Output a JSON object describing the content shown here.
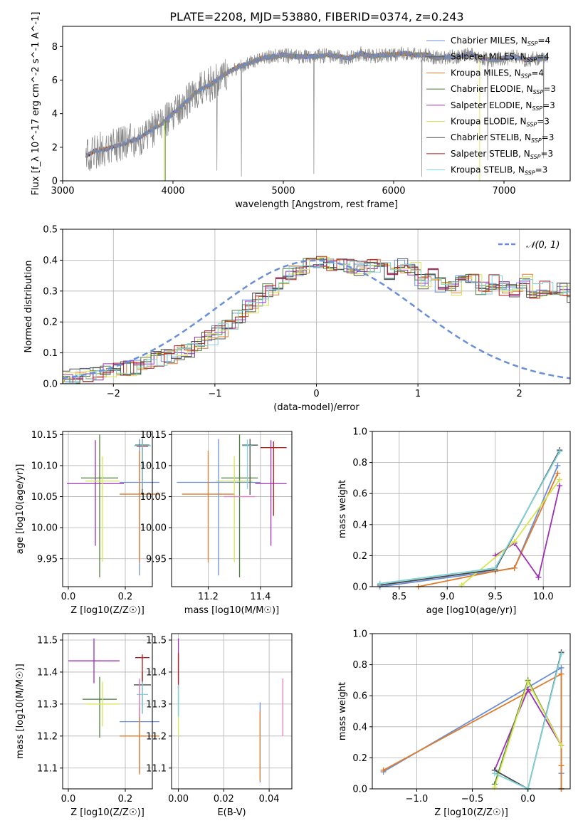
{
  "figure_title": "PLATE=2208, MJD=53880, FIBERID=0374, z=0.243",
  "colors": {
    "Chabrier MILES": "#6a8fd8",
    "Salpeter MILES": "#5a5a5a",
    "Kroupa MILES": "#e07b2a",
    "Chabrier ELODIE": "#4e7f3a",
    "Salpeter ELODIE": "#9b30b5",
    "Kroupa ELODIE": "#d7e650",
    "Chabrier STELIB": "#4a4a4a",
    "Salpeter STELIB": "#b01d1d",
    "Kroupa STELIB": "#7fd3d8",
    "normal": "#6a8fd8",
    "pink": "#e77fbf"
  },
  "chart_data": [
    {
      "id": "spectrum",
      "type": "line",
      "title": "PLATE=2208, MJD=53880, FIBERID=0374, z=0.243",
      "xlabel": "wavelength [Angstrom, rest frame]",
      "ylabel": "Flux [f_λ 10^-17 erg cm^-2 s^-1 A^-1]",
      "xlim": [
        3000,
        7600
      ],
      "ylim": [
        0,
        9.2
      ],
      "xticks": [
        3000,
        4000,
        5000,
        6000,
        7000
      ],
      "yticks": [
        0,
        2,
        4,
        6,
        8
      ],
      "grid": false,
      "legend_position": "right",
      "legend": [
        {
          "name": "Chabrier MILES, N_SSP=4",
          "label": "Chabrier MILES, N",
          "sub": "SSP",
          "suffix": "=4"
        },
        {
          "name": "Salpeter MILES, N_SSP=4",
          "label": "Salpeter MILES, N",
          "sub": "SSP",
          "suffix": "=4"
        },
        {
          "name": "Kroupa MILES, N_SSP=4",
          "label": "Kroupa MILES, N",
          "sub": "SSP",
          "suffix": "=4"
        },
        {
          "name": "Chabrier ELODIE, N_SSP=3",
          "label": "Chabrier ELODIE, N",
          "sub": "SSP",
          "suffix": "=3"
        },
        {
          "name": "Salpeter ELODIE, N_SSP=3",
          "label": "Salpeter ELODIE, N",
          "sub": "SSP",
          "suffix": "=3"
        },
        {
          "name": "Kroupa ELODIE, N_SSP=3",
          "label": "Kroupa ELODIE, N",
          "sub": "SSP",
          "suffix": "=3"
        },
        {
          "name": "Chabrier STELIB, N_SSP=3",
          "label": "Chabrier STELIB, N",
          "sub": "SSP",
          "suffix": "=3"
        },
        {
          "name": "Salpeter STELIB, N_SSP=3",
          "label": "Salpeter STELIB, N",
          "sub": "SSP",
          "suffix": "=3"
        },
        {
          "name": "Kroupa STELIB, N_SSP=3",
          "label": "Kroupa STELIB, N",
          "sub": "SSP",
          "suffix": "=3"
        }
      ],
      "continuum": {
        "x": [
          3210,
          3300,
          3400,
          3500,
          3600,
          3700,
          3800,
          3900,
          4000,
          4100,
          4200,
          4300,
          4400,
          4500,
          4600,
          4700,
          4800,
          4900,
          5000,
          5100,
          5200,
          5300,
          5400,
          5500,
          5600,
          5700,
          5800,
          5900,
          6000,
          6100,
          6200,
          6300,
          6400,
          6500,
          6600,
          6700,
          6800,
          6900,
          7000,
          7100,
          7200,
          7300
        ],
        "y": [
          1.5,
          1.8,
          1.9,
          2.1,
          2.3,
          2.6,
          3.0,
          3.4,
          4.0,
          4.6,
          5.2,
          5.6,
          6.0,
          6.5,
          6.8,
          7.0,
          7.3,
          7.4,
          7.5,
          7.4,
          7.4,
          7.4,
          7.5,
          7.4,
          7.3,
          7.6,
          7.4,
          7.5,
          7.5,
          7.6,
          7.5,
          7.5,
          7.3,
          7.4,
          7.4,
          7.6,
          7.3,
          7.2,
          7.3,
          7.4,
          7.2,
          7.3
        ]
      }
    },
    {
      "id": "residual_hist",
      "type": "bar",
      "xlabel": "(data-model)/error",
      "ylabel": "Normed distribution",
      "xlim": [
        -2.5,
        2.5
      ],
      "ylim": [
        0,
        0.5
      ],
      "xticks": [
        -2,
        -1,
        0,
        1,
        2
      ],
      "yticks": [
        0.0,
        0.1,
        0.2,
        0.3,
        0.4,
        0.5
      ],
      "grid": true,
      "legend_position": "top-right",
      "legend": [
        {
          "name": "N(0,1)",
          "label": "𝒩(0, 1)"
        }
      ],
      "bin_edges_start": -2.5,
      "bin_width": 0.1,
      "base_series": [
        0.02,
        0.025,
        0.03,
        0.035,
        0.04,
        0.045,
        0.05,
        0.055,
        0.07,
        0.08,
        0.09,
        0.1,
        0.11,
        0.13,
        0.15,
        0.17,
        0.19,
        0.22,
        0.25,
        0.27,
        0.3,
        0.32,
        0.36,
        0.37,
        0.4,
        0.39,
        0.38,
        0.39,
        0.38,
        0.37,
        0.38,
        0.4,
        0.36,
        0.38,
        0.37,
        0.33,
        0.35,
        0.32,
        0.31,
        0.33,
        0.35,
        0.31,
        0.33,
        0.31,
        0.3,
        0.33,
        0.3,
        0.31,
        0.3,
        0.31,
        0.28,
        0.3,
        0.27,
        0.24,
        0.26,
        0.22,
        0.2,
        0.18,
        0.17,
        0.15,
        0.15,
        0.13,
        0.12,
        0.1,
        0.1,
        0.09,
        0.08,
        0.07,
        0.07,
        0.06,
        0.05,
        0.05,
        0.06,
        0.04,
        0.05,
        0.04,
        0.04,
        0.03,
        0.03,
        0.03
      ],
      "normal_curve": {
        "mean": 0,
        "sigma": 1
      }
    },
    {
      "id": "age_vs_Z",
      "type": "scatter",
      "xlabel": "Z [log10(Z/Z☉)]",
      "ylabel": "age [log10(age/yr)]",
      "xlim": [
        -0.02,
        0.295
      ],
      "ylim": [
        9.905,
        10.155
      ],
      "xticks": [
        0.0,
        0.2
      ],
      "yticks": [
        9.95,
        10.0,
        10.05,
        10.1,
        10.15
      ],
      "grid": true,
      "points": [
        {
          "series": "Chabrier MILES",
          "x": 0.25,
          "y": 10.073,
          "xerr": 0.07,
          "yerr": [
            0.15,
            0.07
          ]
        },
        {
          "series": "Kroupa MILES",
          "x": 0.25,
          "y": 10.054,
          "xerr": 0.07,
          "yerr": [
            0.11,
            0.07
          ]
        },
        {
          "series": "Salpeter ELODIE",
          "x": 0.095,
          "y": 10.071,
          "xerr": 0.1,
          "yerr": [
            0.1,
            0.07
          ]
        },
        {
          "series": "Chabrier ELODIE",
          "x": 0.11,
          "y": 10.08,
          "xerr": 0.065,
          "yerr": [
            0.16,
            0.07
          ]
        },
        {
          "series": "Kroupa ELODIE",
          "x": 0.12,
          "y": 10.075,
          "xerr": 0.06,
          "yerr": [
            0.13,
            0.04
          ]
        },
        {
          "series": "Chabrier STELIB",
          "x": 0.26,
          "y": 10.133,
          "xerr": 0.025,
          "yerr": [
            0.08,
            0.01
          ]
        },
        {
          "series": "Salpeter STELIB",
          "x": 0.26,
          "y": 10.131,
          "xerr": 0.02,
          "yerr": [
            0.07,
            0.01
          ]
        },
        {
          "series": "Kroupa STELIB",
          "x": 0.26,
          "y": 10.132,
          "xerr": 0.03,
          "yerr": [
            0.07,
            0.01
          ]
        }
      ]
    },
    {
      "id": "age_vs_mass",
      "type": "scatter",
      "xlabel": "mass [log10(M/M☉)]",
      "ylabel": "",
      "xlim": [
        11.06,
        11.52
      ],
      "ylim": [
        9.905,
        10.155
      ],
      "xticks": [
        11.2,
        11.4
      ],
      "yticks": [
        9.95,
        10.0,
        10.05,
        10.1,
        10.15
      ],
      "grid": true,
      "points": [
        {
          "series": "Chabrier MILES",
          "x": 11.24,
          "y": 10.073,
          "xerr": 0.16,
          "yerr": [
            0.15,
            0.07
          ]
        },
        {
          "series": "Kroupa MILES",
          "x": 11.2,
          "y": 10.054,
          "xerr": 0.1,
          "yerr": [
            0.11,
            0.07
          ]
        },
        {
          "series": "Salpeter ELODIE",
          "x": 11.44,
          "y": 10.071,
          "xerr": 0.06,
          "yerr": [
            0.1,
            0.07
          ]
        },
        {
          "series": "Chabrier ELODIE",
          "x": 11.32,
          "y": 10.08,
          "xerr": 0.07,
          "yerr": [
            0.16,
            0.07
          ]
        },
        {
          "series": "Kroupa ELODIE",
          "x": 11.3,
          "y": 10.075,
          "xerr": 0.07,
          "yerr": [
            0.13,
            0.04
          ]
        },
        {
          "series": "Chabrier STELIB",
          "x": 11.36,
          "y": 10.133,
          "xerr": 0.03,
          "yerr": [
            0.08,
            0.01
          ]
        },
        {
          "series": "Salpeter STELIB",
          "x": 11.45,
          "y": 10.129,
          "xerr": 0.05,
          "yerr": [
            0.11,
            0.01
          ]
        },
        {
          "series": "Kroupa STELIB",
          "x": 11.35,
          "y": 10.132,
          "xerr": 0.02,
          "yerr": [
            0.07,
            0.01
          ]
        },
        {
          "series": "pink",
          "x": 11.32,
          "y": 10.05,
          "xerr": 0.06,
          "yerr": [
            0.0,
            0.0
          ]
        }
      ]
    },
    {
      "id": "weight_vs_age",
      "type": "line",
      "xlabel": "age [log10(age/yr)]",
      "ylabel": "mass weight",
      "xlim": [
        8.22,
        10.28
      ],
      "ylim": [
        0,
        1.0
      ],
      "xticks": [
        8.5,
        9.0,
        9.5,
        10.0
      ],
      "yticks": [
        0.0,
        0.2,
        0.4,
        0.6,
        0.8,
        1.0
      ],
      "grid": true,
      "series": [
        {
          "name": "Chabrier MILES",
          "x": [
            8.3,
            9.5,
            9.7,
            10.15
          ],
          "y": [
            0.0,
            0.1,
            0.12,
            0.78
          ]
        },
        {
          "name": "Kroupa MILES",
          "x": [
            8.7,
            9.5,
            9.7,
            10.15
          ],
          "y": [
            0.0,
            0.1,
            0.12,
            0.73
          ]
        },
        {
          "name": "Salpeter ELODIE",
          "x": [
            9.5,
            9.7,
            9.95,
            10.17
          ],
          "y": [
            0.2,
            0.28,
            0.06,
            0.65
          ]
        },
        {
          "name": "Kroupa ELODIE",
          "x": [
            9.15,
            9.7,
            10.17
          ],
          "y": [
            0.01,
            0.29,
            0.69
          ]
        },
        {
          "name": "Chabrier STELIB",
          "x": [
            8.3,
            9.5,
            10.17
          ],
          "y": [
            0.01,
            0.11,
            0.88
          ]
        },
        {
          "name": "Kroupa STELIB",
          "x": [
            8.3,
            9.5,
            10.17
          ],
          "y": [
            0.02,
            0.12,
            0.87
          ]
        }
      ]
    },
    {
      "id": "mass_vs_Z",
      "type": "scatter",
      "xlabel": "Z [log10(Z/Z☉)]",
      "ylabel": "mass [log10(M/M☉)]",
      "xlim": [
        -0.02,
        0.295
      ],
      "ylim": [
        11.035,
        11.52
      ],
      "xticks": [
        0.0,
        0.2
      ],
      "yticks": [
        11.1,
        11.2,
        11.3,
        11.4,
        11.5
      ],
      "grid": true,
      "points": [
        {
          "series": "Chabrier MILES",
          "x": 0.25,
          "y": 11.245,
          "xerr": 0.07,
          "yerr": [
            0.16,
            0.13
          ]
        },
        {
          "series": "Kroupa MILES",
          "x": 0.25,
          "y": 11.2,
          "xerr": 0.07,
          "yerr": [
            0.12,
            0.09
          ]
        },
        {
          "series": "Salpeter ELODIE",
          "x": 0.09,
          "y": 11.435,
          "xerr": 0.09,
          "yerr": [
            0.07,
            0.07
          ]
        },
        {
          "series": "Chabrier ELODIE",
          "x": 0.11,
          "y": 11.315,
          "xerr": 0.06,
          "yerr": [
            0.12,
            0.07
          ]
        },
        {
          "series": "Kroupa ELODIE",
          "x": 0.12,
          "y": 11.3,
          "xerr": 0.06,
          "yerr": [
            0.07,
            0.07
          ]
        },
        {
          "series": "Chabrier STELIB",
          "x": 0.26,
          "y": 11.36,
          "xerr": 0.03,
          "yerr": [
            0.09,
            0.04
          ]
        },
        {
          "series": "Salpeter STELIB",
          "x": 0.26,
          "y": 11.445,
          "xerr": 0.025,
          "yerr": [
            0.08,
            0.01
          ]
        },
        {
          "series": "Kroupa STELIB",
          "x": 0.26,
          "y": 11.33,
          "xerr": 0.02,
          "yerr": [
            0.06,
            0.04
          ]
        },
        {
          "series": "pink",
          "x": 0.25,
          "y": 11.32,
          "xerr": 0.0,
          "yerr": [
            0.06,
            0.06
          ]
        }
      ]
    },
    {
      "id": "mass_vs_EBV",
      "type": "scatter",
      "xlabel": "E(B-V)",
      "ylabel": "",
      "xlim": [
        -0.003,
        0.05
      ],
      "ylim": [
        11.035,
        11.52
      ],
      "xticks": [
        0.0,
        0.02,
        0.04
      ],
      "yticks": [
        11.1,
        11.2,
        11.3,
        11.4,
        11.5
      ],
      "grid": true,
      "points": [
        {
          "series": "Chabrier MILES",
          "x": 0.036,
          "y": 11.245,
          "xerr": 0,
          "yerr": [
            0.19,
            0.06
          ]
        },
        {
          "series": "Kroupa MILES",
          "x": 0.036,
          "y": 11.2,
          "xerr": 0,
          "yerr": [
            0.14,
            0.08
          ]
        },
        {
          "series": "Salpeter ELODIE",
          "x": 0.0,
          "y": 11.435,
          "xerr": 0,
          "yerr": [
            0.07,
            0.07
          ]
        },
        {
          "series": "Chabrier ELODIE",
          "x": 0.0,
          "y": 11.315,
          "xerr": 0,
          "yerr": [
            0.05,
            0.04
          ]
        },
        {
          "series": "Kroupa ELODIE",
          "x": 0.0,
          "y": 11.23,
          "xerr": 0,
          "yerr": [
            0.03,
            0.04
          ]
        },
        {
          "series": "Salpeter STELIB",
          "x": 0.0,
          "y": 11.39,
          "xerr": 0,
          "yerr": [
            0.04,
            0.07
          ]
        },
        {
          "series": "Kroupa STELIB",
          "x": 0.0,
          "y": 11.3,
          "xerr": 0,
          "yerr": [
            0.04,
            0.06
          ]
        },
        {
          "series": "pink",
          "x": 0.046,
          "y": 11.29,
          "xerr": 0,
          "yerr": [
            0.09,
            0.09
          ]
        }
      ]
    },
    {
      "id": "weight_vs_Z",
      "type": "line",
      "xlabel": "Z [log10(Z/Z☉)]",
      "ylabel": "mass weight",
      "xlim": [
        -1.4,
        0.38
      ],
      "ylim": [
        0,
        1.0
      ],
      "xticks": [
        -1.0,
        -0.5,
        0.0
      ],
      "yticks": [
        0.0,
        0.2,
        0.4,
        0.6,
        0.8,
        1.0
      ],
      "grid": true,
      "series": [
        {
          "name": "Chabrier MILES",
          "x": [
            -1.3,
            0.3,
            0.3,
            0.3
          ],
          "y": [
            0.11,
            0.78,
            0.1,
            0.0
          ]
        },
        {
          "name": "Kroupa MILES",
          "x": [
            -1.3,
            0.3,
            0.3,
            0.3
          ],
          "y": [
            0.12,
            0.74,
            0.15,
            0.0
          ]
        },
        {
          "name": "Salpeter ELODIE",
          "x": [
            -0.3,
            0.0,
            0.3
          ],
          "y": [
            0.12,
            0.64,
            0.28
          ]
        },
        {
          "name": "Chabrier ELODIE",
          "x": [
            -0.3,
            0.0,
            0.3
          ],
          "y": [
            0.03,
            0.7,
            0.28
          ]
        },
        {
          "name": "Kroupa ELODIE",
          "x": [
            -0.3,
            0.0,
            0.3
          ],
          "y": [
            0.01,
            0.69,
            0.28
          ]
        },
        {
          "name": "Chabrier STELIB",
          "x": [
            -0.3,
            0.0,
            0.3
          ],
          "y": [
            0.12,
            0.0,
            0.88
          ]
        },
        {
          "name": "Kroupa STELIB",
          "x": [
            -0.3,
            0.0,
            0.3
          ],
          "y": [
            0.1,
            0.0,
            0.87
          ]
        }
      ]
    }
  ]
}
